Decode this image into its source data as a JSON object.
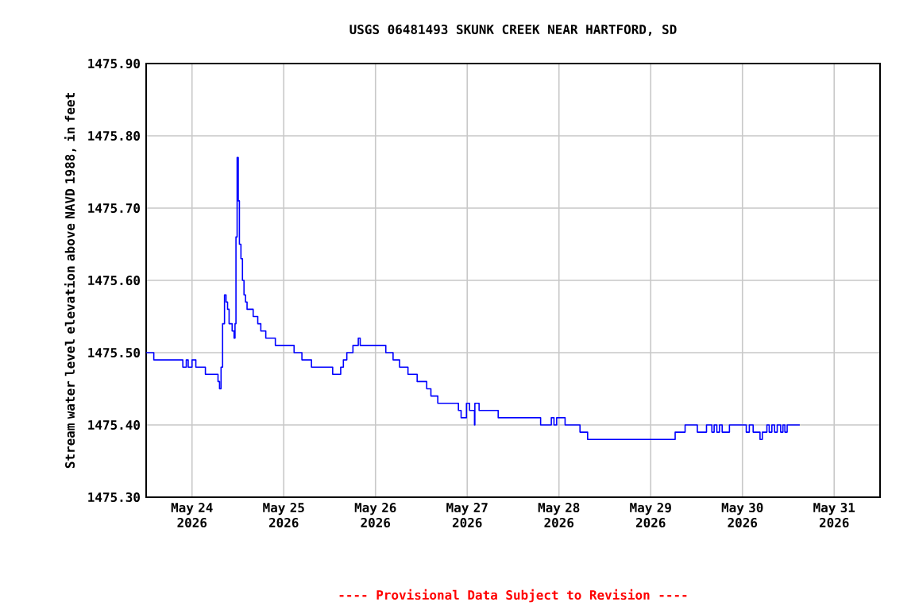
{
  "chart_data": {
    "type": "step",
    "title": "USGS 06481493 SKUNK CREEK NEAR HARTFORD, SD",
    "ylabel": "Stream water level elevation above NAVD 1988, in feet",
    "annotations": [
      "---- Provisional Data Subject to Revision ----"
    ],
    "grid": true,
    "xlim": [
      "2026-05-23T12:00",
      "2026-05-31T12:00"
    ],
    "xticks": [
      {
        "value": "2026-05-24",
        "label": "May 24 2026"
      },
      {
        "value": "2026-05-25",
        "label": "May 25 2026"
      },
      {
        "value": "2026-05-26",
        "label": "May 26 2026"
      },
      {
        "value": "2026-05-27",
        "label": "May 27 2026"
      },
      {
        "value": "2026-05-28",
        "label": "May 28 2026"
      },
      {
        "value": "2026-05-29",
        "label": "May 29 2026"
      },
      {
        "value": "2026-05-30",
        "label": "May 30 2026"
      },
      {
        "value": "2026-05-31",
        "label": "May 31 2026"
      }
    ],
    "ylim": [
      1475.3,
      1475.9
    ],
    "yticks": [
      {
        "value": 1475.3,
        "label": "1475.30"
      },
      {
        "value": 1475.4,
        "label": "1475.40"
      },
      {
        "value": 1475.5,
        "label": "1475.50"
      },
      {
        "value": 1475.6,
        "label": "1475.60"
      },
      {
        "value": 1475.7,
        "label": "1475.70"
      },
      {
        "value": 1475.8,
        "label": "1475.80"
      },
      {
        "value": 1475.9,
        "label": "1475.90"
      }
    ],
    "series": [
      {
        "color": "#0000ff",
        "x": [
          "2026-05-23T12:00",
          "2026-05-23T14:00",
          "2026-05-23T21:36",
          "2026-05-23T22:30",
          "2026-05-23T23:00",
          "2026-05-24T00:00",
          "2026-05-24T01:00",
          "2026-05-24T03:30",
          "2026-05-24T06:48",
          "2026-05-24T07:12",
          "2026-05-24T07:36",
          "2026-05-24T08:00",
          "2026-05-24T08:30",
          "2026-05-24T08:54",
          "2026-05-24T09:18",
          "2026-05-24T09:42",
          "2026-05-24T10:30",
          "2026-05-24T11:00",
          "2026-05-24T11:15",
          "2026-05-24T11:30",
          "2026-05-24T11:48",
          "2026-05-24T12:06",
          "2026-05-24T12:24",
          "2026-05-24T12:48",
          "2026-05-24T13:12",
          "2026-05-24T13:36",
          "2026-05-24T14:00",
          "2026-05-24T14:24",
          "2026-05-24T16:00",
          "2026-05-24T17:12",
          "2026-05-24T18:00",
          "2026-05-24T19:18",
          "2026-05-24T21:48",
          "2026-05-25T02:42",
          "2026-05-25T04:45",
          "2026-05-25T07:15",
          "2026-05-25T12:48",
          "2026-05-25T14:54",
          "2026-05-25T15:36",
          "2026-05-25T16:30",
          "2026-05-25T18:06",
          "2026-05-25T19:30",
          "2026-05-25T20:00",
          "2026-05-26T02:42",
          "2026-05-26T04:36",
          "2026-05-26T06:18",
          "2026-05-26T08:30",
          "2026-05-26T10:54",
          "2026-05-26T13:24",
          "2026-05-26T14:30",
          "2026-05-26T16:18",
          "2026-05-26T21:42",
          "2026-05-26T22:24",
          "2026-05-26T23:48",
          "2026-05-27T00:36",
          "2026-05-27T01:54",
          "2026-05-27T02:00",
          "2026-05-27T03:06",
          "2026-05-27T08:06",
          "2026-05-27T19:12",
          "2026-05-27T22:00",
          "2026-05-27T22:42",
          "2026-05-27T23:24",
          "2026-05-28T01:36",
          "2026-05-28T05:30",
          "2026-05-28T07:30",
          "2026-05-29T06:24",
          "2026-05-29T09:00",
          "2026-05-29T12:12",
          "2026-05-29T14:36",
          "2026-05-29T16:00",
          "2026-05-29T16:36",
          "2026-05-29T17:18",
          "2026-05-29T18:00",
          "2026-05-29T18:42",
          "2026-05-29T20:36",
          "2026-05-30T01:00",
          "2026-05-30T01:48",
          "2026-05-30T02:48",
          "2026-05-30T04:36",
          "2026-05-30T05:12",
          "2026-05-30T06:24",
          "2026-05-30T07:00",
          "2026-05-30T07:42",
          "2026-05-30T08:24",
          "2026-05-30T09:06",
          "2026-05-30T10:00",
          "2026-05-30T10:36",
          "2026-05-30T11:06",
          "2026-05-30T11:42",
          "2026-05-30T15:00"
        ],
        "values": [
          1475.5,
          1475.49,
          1475.48,
          1475.49,
          1475.48,
          1475.49,
          1475.48,
          1475.47,
          1475.46,
          1475.45,
          1475.48,
          1475.54,
          1475.58,
          1475.57,
          1475.56,
          1475.54,
          1475.53,
          1475.52,
          1475.54,
          1475.66,
          1475.77,
          1475.71,
          1475.65,
          1475.63,
          1475.6,
          1475.58,
          1475.57,
          1475.56,
          1475.55,
          1475.54,
          1475.53,
          1475.52,
          1475.51,
          1475.5,
          1475.49,
          1475.48,
          1475.47,
          1475.48,
          1475.49,
          1475.5,
          1475.51,
          1475.52,
          1475.51,
          1475.5,
          1475.49,
          1475.48,
          1475.47,
          1475.46,
          1475.45,
          1475.44,
          1475.43,
          1475.42,
          1475.41,
          1475.43,
          1475.42,
          1475.4,
          1475.43,
          1475.42,
          1475.41,
          1475.4,
          1475.41,
          1475.4,
          1475.41,
          1475.4,
          1475.39,
          1475.38,
          1475.39,
          1475.4,
          1475.39,
          1475.4,
          1475.39,
          1475.4,
          1475.39,
          1475.4,
          1475.39,
          1475.4,
          1475.39,
          1475.4,
          1475.39,
          1475.38,
          1475.39,
          1475.4,
          1475.39,
          1475.4,
          1475.39,
          1475.4,
          1475.39,
          1475.4,
          1475.39,
          1475.4,
          1475.4
        ]
      }
    ]
  }
}
